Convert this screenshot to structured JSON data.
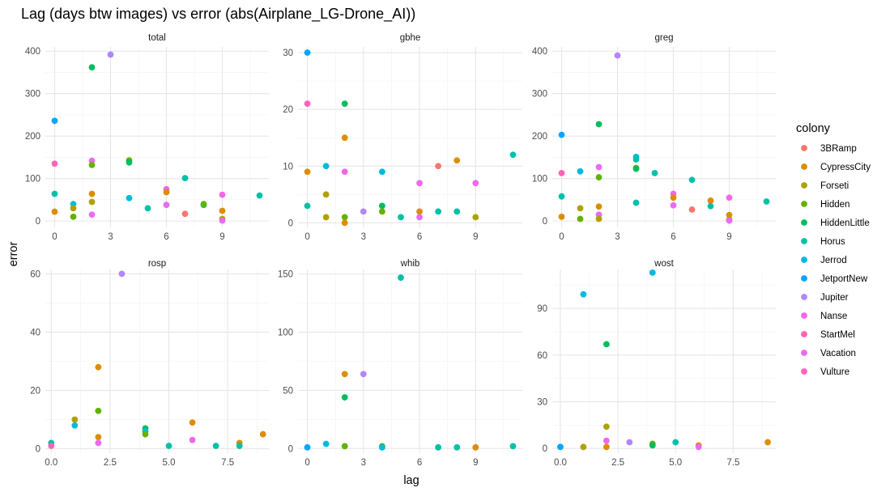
{
  "chart_data": {
    "type": "scatter",
    "title": "Lag (days btw images) vs error (abs(Airplane_LG-Drone_AI))",
    "xlabel": "lag",
    "ylabel": "error",
    "legend": {
      "title": "colony",
      "position": "right",
      "entries": [
        {
          "name": "3BRamp",
          "color": "#F8766D"
        },
        {
          "name": "CypressCity",
          "color": "#DB8E00"
        },
        {
          "name": "Forseti",
          "color": "#AEA200"
        },
        {
          "name": "Hidden",
          "color": "#64B200"
        },
        {
          "name": "HiddenLittle",
          "color": "#00BD5C"
        },
        {
          "name": "Horus",
          "color": "#00C1A7"
        },
        {
          "name": "Jerrod",
          "color": "#00BADE"
        },
        {
          "name": "JetportNew",
          "color": "#00A6FF"
        },
        {
          "name": "Jupiter",
          "color": "#B385FF"
        },
        {
          "name": "Nanse",
          "color": "#EF67EB"
        },
        {
          "name": "StartMel",
          "color": "#FF63B6"
        },
        {
          "name": "Vacation",
          "color": "#E76BF3"
        },
        {
          "name": "Vulture",
          "color": "#FF62BC"
        }
      ]
    },
    "panels": [
      {
        "strip": "total",
        "xlim": [
          -0.5,
          11.5
        ],
        "ylim": [
          -15,
          410
        ],
        "xticks": [
          {
            "v": 0,
            "l": "0"
          },
          {
            "v": 3,
            "l": "3"
          },
          {
            "v": 6,
            "l": "6"
          },
          {
            "v": 9,
            "l": "9"
          }
        ],
        "yticks": [
          {
            "v": 0,
            "l": "0"
          },
          {
            "v": 100,
            "l": "100"
          },
          {
            "v": 200,
            "l": "200"
          },
          {
            "v": 300,
            "l": "300"
          },
          {
            "v": 400,
            "l": "400"
          }
        ],
        "points": [
          {
            "x": 0,
            "y": 236,
            "c": "#00A6FF"
          },
          {
            "x": 0,
            "y": 135,
            "c": "#FF62BC"
          },
          {
            "x": 0,
            "y": 64,
            "c": "#00C1A7"
          },
          {
            "x": 0,
            "y": 22,
            "c": "#DB8E00"
          },
          {
            "x": 1,
            "y": 40,
            "c": "#00BADE"
          },
          {
            "x": 1,
            "y": 30,
            "c": "#AEA200"
          },
          {
            "x": 1,
            "y": 10,
            "c": "#64B200"
          },
          {
            "x": 2,
            "y": 362,
            "c": "#00BD5C"
          },
          {
            "x": 2,
            "y": 142,
            "c": "#E76BF3"
          },
          {
            "x": 2,
            "y": 132,
            "c": "#64B200"
          },
          {
            "x": 2,
            "y": 64,
            "c": "#DB8E00"
          },
          {
            "x": 2,
            "y": 45,
            "c": "#AEA200"
          },
          {
            "x": 2,
            "y": 15,
            "c": "#E76BF3"
          },
          {
            "x": 3,
            "y": 392,
            "c": "#B385FF"
          },
          {
            "x": 4,
            "y": 143,
            "c": "#64B200"
          },
          {
            "x": 4,
            "y": 138,
            "c": "#00BD5C"
          },
          {
            "x": 4,
            "y": 54,
            "c": "#00BADE"
          },
          {
            "x": 5,
            "y": 30,
            "c": "#00C1A7"
          },
          {
            "x": 6,
            "y": 75,
            "c": "#EF67EB"
          },
          {
            "x": 6,
            "y": 68,
            "c": "#DB8E00"
          },
          {
            "x": 6,
            "y": 38,
            "c": "#E76BF3"
          },
          {
            "x": 7,
            "y": 101,
            "c": "#00C1A7"
          },
          {
            "x": 7,
            "y": 17,
            "c": "#F8766D"
          },
          {
            "x": 8,
            "y": 38,
            "c": "#00C1A7"
          },
          {
            "x": 8,
            "y": 40,
            "c": "#64B200"
          },
          {
            "x": 9,
            "y": 62,
            "c": "#EF67EB"
          },
          {
            "x": 9,
            "y": 24,
            "c": "#DB8E00"
          },
          {
            "x": 9,
            "y": 5,
            "c": "#AEA200"
          },
          {
            "x": 9,
            "y": 1,
            "c": "#E76BF3"
          },
          {
            "x": 11,
            "y": 60,
            "c": "#00C1A7"
          }
        ]
      },
      {
        "strip": "gbhe",
        "xlim": [
          -0.5,
          11.5
        ],
        "ylim": [
          -0.8,
          31
        ],
        "xticks": [
          {
            "v": 0,
            "l": "0"
          },
          {
            "v": 3,
            "l": "3"
          },
          {
            "v": 6,
            "l": "6"
          },
          {
            "v": 9,
            "l": "9"
          }
        ],
        "yticks": [
          {
            "v": 0,
            "l": "0"
          },
          {
            "v": 10,
            "l": "10"
          },
          {
            "v": 20,
            "l": "20"
          },
          {
            "v": 30,
            "l": "30"
          }
        ],
        "points": [
          {
            "x": 0,
            "y": 30,
            "c": "#00A6FF"
          },
          {
            "x": 0,
            "y": 21,
            "c": "#FF62BC"
          },
          {
            "x": 0,
            "y": 9,
            "c": "#DB8E00"
          },
          {
            "x": 0,
            "y": 3,
            "c": "#00C1A7"
          },
          {
            "x": 1,
            "y": 10,
            "c": "#00BADE"
          },
          {
            "x": 1,
            "y": 5,
            "c": "#AEA200"
          },
          {
            "x": 1,
            "y": 1,
            "c": "#AEA200"
          },
          {
            "x": 2,
            "y": 21,
            "c": "#00BD5C"
          },
          {
            "x": 2,
            "y": 15,
            "c": "#DB8E00"
          },
          {
            "x": 2,
            "y": 9,
            "c": "#EF67EB"
          },
          {
            "x": 2,
            "y": 1,
            "c": "#64B200"
          },
          {
            "x": 2,
            "y": 0,
            "c": "#DB8E00"
          },
          {
            "x": 3,
            "y": 2,
            "c": "#B385FF"
          },
          {
            "x": 4,
            "y": 9,
            "c": "#00BADE"
          },
          {
            "x": 4,
            "y": 3,
            "c": "#00BD5C"
          },
          {
            "x": 4,
            "y": 2,
            "c": "#64B200"
          },
          {
            "x": 5,
            "y": 1,
            "c": "#00C1A7"
          },
          {
            "x": 6,
            "y": 7,
            "c": "#EF67EB"
          },
          {
            "x": 6,
            "y": 2,
            "c": "#DB8E00"
          },
          {
            "x": 6,
            "y": 1,
            "c": "#E76BF3"
          },
          {
            "x": 7,
            "y": 10,
            "c": "#F8766D"
          },
          {
            "x": 7,
            "y": 2,
            "c": "#00C1A7"
          },
          {
            "x": 8,
            "y": 11,
            "c": "#DB8E00"
          },
          {
            "x": 8,
            "y": 2,
            "c": "#00C1A7"
          },
          {
            "x": 9,
            "y": 7,
            "c": "#EF67EB"
          },
          {
            "x": 9,
            "y": 1,
            "c": "#AEA200"
          },
          {
            "x": 11,
            "y": 12,
            "c": "#00C1A7"
          }
        ]
      },
      {
        "strip": "greg",
        "xlim": [
          -0.5,
          11.5
        ],
        "ylim": [
          -15,
          410
        ],
        "xticks": [
          {
            "v": 0,
            "l": "0"
          },
          {
            "v": 3,
            "l": "3"
          },
          {
            "v": 6,
            "l": "6"
          },
          {
            "v": 9,
            "l": "9"
          }
        ],
        "yticks": [
          {
            "v": 0,
            "l": "0"
          },
          {
            "v": 100,
            "l": "100"
          },
          {
            "v": 200,
            "l": "200"
          },
          {
            "v": 300,
            "l": "300"
          },
          {
            "v": 400,
            "l": "400"
          }
        ],
        "points": [
          {
            "x": 0,
            "y": 203,
            "c": "#00A6FF"
          },
          {
            "x": 0,
            "y": 113,
            "c": "#FF62BC"
          },
          {
            "x": 0,
            "y": 58,
            "c": "#00C1A7"
          },
          {
            "x": 0,
            "y": 10,
            "c": "#DB8E00"
          },
          {
            "x": 1,
            "y": 117,
            "c": "#00BADE"
          },
          {
            "x": 1,
            "y": 30,
            "c": "#AEA200"
          },
          {
            "x": 1,
            "y": 5,
            "c": "#64B200"
          },
          {
            "x": 2,
            "y": 228,
            "c": "#00BD5C"
          },
          {
            "x": 2,
            "y": 127,
            "c": "#E76BF3"
          },
          {
            "x": 2,
            "y": 103,
            "c": "#64B200"
          },
          {
            "x": 2,
            "y": 34,
            "c": "#DB8E00"
          },
          {
            "x": 2,
            "y": 15,
            "c": "#E76BF3"
          },
          {
            "x": 2,
            "y": 5,
            "c": "#AEA200"
          },
          {
            "x": 3,
            "y": 390,
            "c": "#B385FF"
          },
          {
            "x": 4,
            "y": 151,
            "c": "#00BADE"
          },
          {
            "x": 4,
            "y": 145,
            "c": "#00C1A7"
          },
          {
            "x": 4,
            "y": 125,
            "c": "#64B200"
          },
          {
            "x": 4,
            "y": 123,
            "c": "#00BD5C"
          },
          {
            "x": 4,
            "y": 43,
            "c": "#00C1A7"
          },
          {
            "x": 5,
            "y": 113,
            "c": "#00C1A7"
          },
          {
            "x": 6,
            "y": 64,
            "c": "#EF67EB"
          },
          {
            "x": 6,
            "y": 55,
            "c": "#DB8E00"
          },
          {
            "x": 6,
            "y": 37,
            "c": "#E76BF3"
          },
          {
            "x": 7,
            "y": 97,
            "c": "#00C1A7"
          },
          {
            "x": 7,
            "y": 27,
            "c": "#F8766D"
          },
          {
            "x": 8,
            "y": 48,
            "c": "#DB8E00"
          },
          {
            "x": 8,
            "y": 35,
            "c": "#00C1A7"
          },
          {
            "x": 9,
            "y": 55,
            "c": "#EF67EB"
          },
          {
            "x": 9,
            "y": 14,
            "c": "#DB8E00"
          },
          {
            "x": 9,
            "y": 3,
            "c": "#AEA200"
          },
          {
            "x": 9,
            "y": 1,
            "c": "#E76BF3"
          },
          {
            "x": 11,
            "y": 46,
            "c": "#00C1A7"
          }
        ]
      },
      {
        "strip": "rosp",
        "xlim": [
          -0.25,
          9.25
        ],
        "ylim": [
          -1.5,
          61.5
        ],
        "xticks": [
          {
            "v": 0,
            "l": "0.0"
          },
          {
            "v": 2.5,
            "l": "2.5"
          },
          {
            "v": 5,
            "l": "5.0"
          },
          {
            "v": 7.5,
            "l": "7.5"
          }
        ],
        "yticks": [
          {
            "v": 0,
            "l": "0"
          },
          {
            "v": 20,
            "l": "20"
          },
          {
            "v": 40,
            "l": "40"
          },
          {
            "v": 60,
            "l": "60"
          }
        ],
        "points": [
          {
            "x": 0,
            "y": 2,
            "c": "#00C1A7"
          },
          {
            "x": 0,
            "y": 1,
            "c": "#FF62BC"
          },
          {
            "x": 1,
            "y": 10,
            "c": "#AEA200"
          },
          {
            "x": 1,
            "y": 8,
            "c": "#00BADE"
          },
          {
            "x": 2,
            "y": 28,
            "c": "#DB8E00"
          },
          {
            "x": 2,
            "y": 13,
            "c": "#64B200"
          },
          {
            "x": 2,
            "y": 4,
            "c": "#DB8E00"
          },
          {
            "x": 2,
            "y": 2,
            "c": "#E76BF3"
          },
          {
            "x": 3,
            "y": 60,
            "c": "#B385FF"
          },
          {
            "x": 4,
            "y": 7,
            "c": "#00BD5C"
          },
          {
            "x": 4,
            "y": 6,
            "c": "#00BADE"
          },
          {
            "x": 4,
            "y": 5,
            "c": "#64B200"
          },
          {
            "x": 5,
            "y": 1,
            "c": "#00C1A7"
          },
          {
            "x": 6,
            "y": 9,
            "c": "#DB8E00"
          },
          {
            "x": 6,
            "y": 3,
            "c": "#EF67EB"
          },
          {
            "x": 7,
            "y": 1,
            "c": "#00C1A7"
          },
          {
            "x": 8,
            "y": 2,
            "c": "#DB8E00"
          },
          {
            "x": 8,
            "y": 1,
            "c": "#00C1A7"
          },
          {
            "x": 9,
            "y": 5,
            "c": "#DB8E00"
          }
        ]
      },
      {
        "strip": "whib",
        "xlim": [
          -0.5,
          11.5
        ],
        "ylim": [
          -4,
          154
        ],
        "xticks": [
          {
            "v": 0,
            "l": "0"
          },
          {
            "v": 3,
            "l": "3"
          },
          {
            "v": 6,
            "l": "6"
          },
          {
            "v": 9,
            "l": "9"
          }
        ],
        "yticks": [
          {
            "v": 0,
            "l": "0"
          },
          {
            "v": 50,
            "l": "50"
          },
          {
            "v": 100,
            "l": "100"
          },
          {
            "v": 150,
            "l": "150"
          }
        ],
        "points": [
          {
            "x": 0,
            "y": 1,
            "c": "#00A6FF"
          },
          {
            "x": 1,
            "y": 4,
            "c": "#00BADE"
          },
          {
            "x": 2,
            "y": 64,
            "c": "#DB8E00"
          },
          {
            "x": 2,
            "y": 44,
            "c": "#00BD5C"
          },
          {
            "x": 2,
            "y": 2,
            "c": "#64B200"
          },
          {
            "x": 3,
            "y": 64,
            "c": "#B385FF"
          },
          {
            "x": 4,
            "y": 2,
            "c": "#64B200"
          },
          {
            "x": 4,
            "y": 1,
            "c": "#00BADE"
          },
          {
            "x": 5,
            "y": 147,
            "c": "#00C1A7"
          },
          {
            "x": 7,
            "y": 1,
            "c": "#00C1A7"
          },
          {
            "x": 8,
            "y": 1,
            "c": "#00C1A7"
          },
          {
            "x": 9,
            "y": 1,
            "c": "#DB8E00"
          },
          {
            "x": 11,
            "y": 2,
            "c": "#00C1A7"
          }
        ]
      },
      {
        "strip": "wost",
        "xlim": [
          -0.35,
          9.35
        ],
        "ylim": [
          -3,
          115
        ],
        "xticks": [
          {
            "v": 0,
            "l": "0.0"
          },
          {
            "v": 2.5,
            "l": "2.5"
          },
          {
            "v": 5,
            "l": "5.0"
          },
          {
            "v": 7.5,
            "l": "7.5"
          }
        ],
        "yticks": [
          {
            "v": 0,
            "l": "0"
          },
          {
            "v": 30,
            "l": "30"
          },
          {
            "v": 60,
            "l": "60"
          },
          {
            "v": 90,
            "l": "90"
          }
        ],
        "points": [
          {
            "x": 0,
            "y": 1,
            "c": "#00A6FF"
          },
          {
            "x": 1,
            "y": 99,
            "c": "#00BADE"
          },
          {
            "x": 1,
            "y": 1,
            "c": "#AEA200"
          },
          {
            "x": 2,
            "y": 67,
            "c": "#00BD5C"
          },
          {
            "x": 2,
            "y": 14,
            "c": "#AEA200"
          },
          {
            "x": 2,
            "y": 5,
            "c": "#EF67EB"
          },
          {
            "x": 2,
            "y": 1,
            "c": "#DB8E00"
          },
          {
            "x": 3,
            "y": 4,
            "c": "#B385FF"
          },
          {
            "x": 4,
            "y": 113,
            "c": "#00BADE"
          },
          {
            "x": 4,
            "y": 3,
            "c": "#64B200"
          },
          {
            "x": 4,
            "y": 2,
            "c": "#00BD5C"
          },
          {
            "x": 5,
            "y": 4,
            "c": "#00C1A7"
          },
          {
            "x": 6,
            "y": 2,
            "c": "#DB8E00"
          },
          {
            "x": 6,
            "y": 1,
            "c": "#E76BF3"
          },
          {
            "x": 9,
            "y": 4,
            "c": "#DB8E00"
          }
        ]
      }
    ]
  }
}
